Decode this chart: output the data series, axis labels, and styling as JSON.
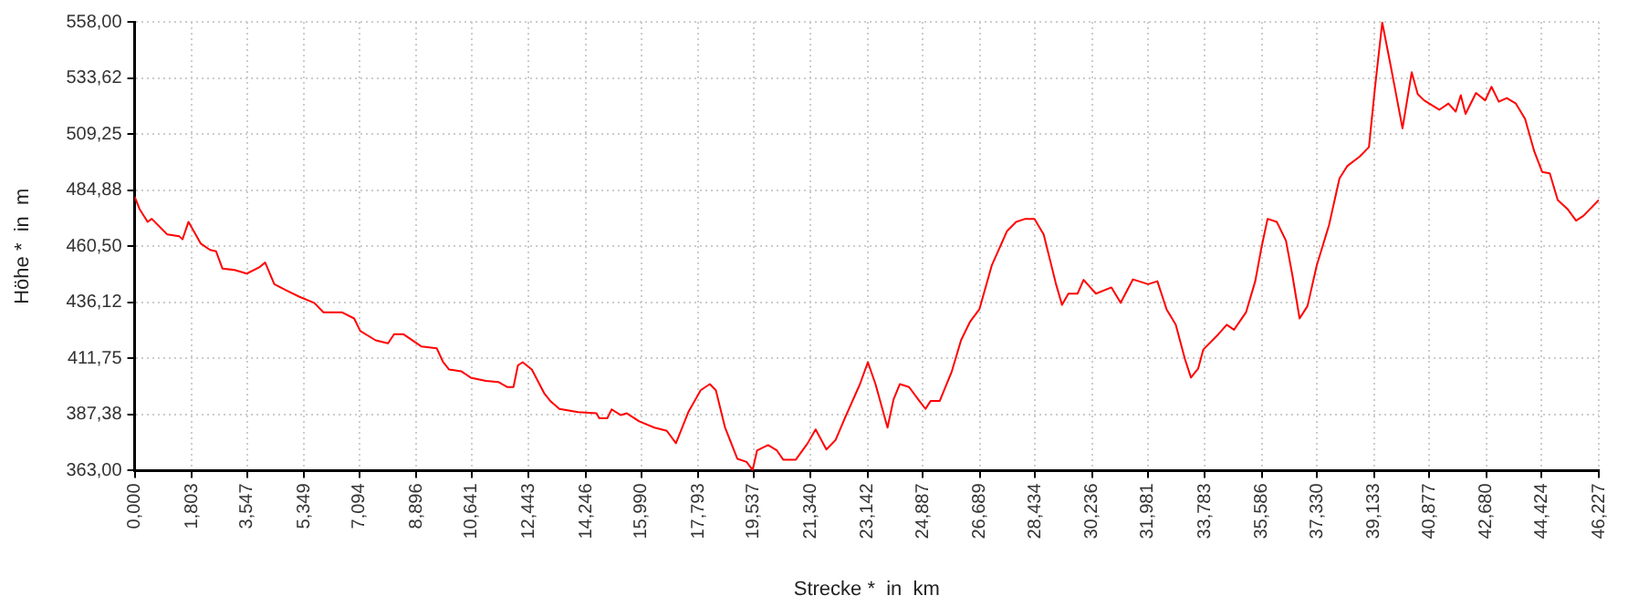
{
  "chart_data": {
    "type": "line",
    "xlabel": "Strecke *  in  km",
    "ylabel": "Höhe *  in  m",
    "grid": true,
    "legend": false,
    "marker": "none",
    "line_style": "solid",
    "xlim": [
      0,
      46.227
    ],
    "ylim": [
      363,
      558
    ],
    "xticks": [
      {
        "value": 0,
        "label": "0,000"
      },
      {
        "value": 1.803,
        "label": "1,803"
      },
      {
        "value": 3.547,
        "label": "3,547"
      },
      {
        "value": 5.349,
        "label": "5,349"
      },
      {
        "value": 7.094,
        "label": "7,094"
      },
      {
        "value": 8.896,
        "label": "8,896"
      },
      {
        "value": 10.641,
        "label": "10,641"
      },
      {
        "value": 12.443,
        "label": "12,443"
      },
      {
        "value": 14.246,
        "label": "14,246"
      },
      {
        "value": 15.99,
        "label": "15,990"
      },
      {
        "value": 17.793,
        "label": "17,793"
      },
      {
        "value": 19.537,
        "label": "19,537"
      },
      {
        "value": 21.34,
        "label": "21,340"
      },
      {
        "value": 23.142,
        "label": "23,142"
      },
      {
        "value": 24.887,
        "label": "24,887"
      },
      {
        "value": 26.689,
        "label": "26,689"
      },
      {
        "value": 28.434,
        "label": "28,434"
      },
      {
        "value": 30.236,
        "label": "30,236"
      },
      {
        "value": 31.981,
        "label": "31,981"
      },
      {
        "value": 33.783,
        "label": "33,783"
      },
      {
        "value": 35.586,
        "label": "35,586"
      },
      {
        "value": 37.33,
        "label": "37,330"
      },
      {
        "value": 39.133,
        "label": "39,133"
      },
      {
        "value": 40.877,
        "label": "40,877"
      },
      {
        "value": 42.68,
        "label": "42,680"
      },
      {
        "value": 44.424,
        "label": "44,424"
      },
      {
        "value": 46.227,
        "label": "46,227"
      }
    ],
    "yticks": [
      {
        "value": 363,
        "label": "363,00"
      },
      {
        "value": 387.38,
        "label": "387,38"
      },
      {
        "value": 411.75,
        "label": "411,75"
      },
      {
        "value": 436.12,
        "label": "436,12"
      },
      {
        "value": 460.5,
        "label": "460,50"
      },
      {
        "value": 484.88,
        "label": "484,88"
      },
      {
        "value": 509.25,
        "label": "509,25"
      },
      {
        "value": 533.62,
        "label": "533,62"
      },
      {
        "value": 558,
        "label": "558,00"
      }
    ],
    "series": [
      {
        "color": "#ff0000",
        "x": [
          0,
          0.16,
          0.41,
          0.54,
          1.03,
          1.41,
          1.51,
          1.7,
          2.09,
          2.38,
          2.57,
          2.77,
          3.15,
          3.54,
          3.93,
          4.12,
          4.41,
          4.8,
          5.19,
          5.67,
          5.96,
          6.54,
          6.93,
          7.12,
          7.61,
          8.0,
          8.19,
          8.48,
          9.06,
          9.54,
          9.74,
          9.93,
          10.32,
          10.61,
          11.09,
          11.48,
          11.77,
          11.96,
          12.1,
          12.25,
          12.54,
          12.93,
          13.12,
          13.41,
          14.0,
          14.58,
          14.67,
          14.92,
          15.06,
          15.35,
          15.54,
          15.93,
          16.41,
          16.8,
          17.09,
          17.48,
          17.87,
          18.16,
          18.35,
          18.64,
          19.03,
          19.32,
          19.51,
          19.65,
          20.0,
          20.28,
          20.48,
          20.87,
          21.25,
          21.5,
          21.84,
          22.13,
          22.42,
          22.9,
          23.15,
          23.39,
          23.77,
          23.96,
          24.16,
          24.45,
          24.74,
          24.97,
          25.13,
          25.42,
          25.8,
          26.09,
          26.38,
          26.67,
          27.06,
          27.54,
          27.83,
          28.12,
          28.41,
          28.7,
          29.09,
          29.28,
          29.48,
          29.77,
          29.96,
          30.35,
          30.84,
          31.13,
          31.52,
          32.0,
          32.29,
          32.58,
          32.87,
          33.16,
          33.35,
          33.58,
          33.74,
          34.22,
          34.48,
          34.71,
          35.09,
          35.38,
          35.58,
          35.77,
          36.06,
          36.35,
          36.55,
          36.78,
          37.03,
          37.32,
          37.71,
          38.04,
          38.29,
          38.68,
          38.97,
          39.16,
          39.39,
          39.64,
          40.03,
          40.32,
          40.51,
          40.71,
          41.19,
          41.48,
          41.71,
          41.87,
          42.02,
          42.35,
          42.64,
          42.84,
          43.07,
          43.32,
          43.61,
          43.9,
          44.19,
          44.44,
          44.68,
          44.93,
          45.25,
          45.51,
          45.74,
          46.227
        ],
        "values": [
          482,
          476.5,
          471.1,
          472.4,
          465.6,
          464.8,
          463.5,
          471.1,
          461.6,
          458.9,
          458.3,
          450.8,
          450.2,
          448.6,
          451.3,
          453.4,
          444,
          441.2,
          438.6,
          435.9,
          431.8,
          431.8,
          429.1,
          423.7,
          419.6,
          418.3,
          422.3,
          422.3,
          416.9,
          416.1,
          410.1,
          406.9,
          406.1,
          403.4,
          402,
          401.5,
          399.3,
          399.3,
          408.7,
          410.1,
          406.9,
          396.6,
          393.3,
          389.8,
          388.4,
          387.9,
          385.7,
          385.7,
          389.6,
          387.1,
          387.9,
          384.4,
          381.7,
          380.3,
          374.9,
          388.4,
          397.9,
          400.6,
          397.9,
          381.7,
          368.1,
          366.8,
          363.2,
          371.7,
          374.1,
          371.7,
          367.7,
          367.7,
          374.9,
          380.9,
          372.2,
          376.3,
          385.7,
          400.6,
          410.1,
          400.6,
          381.7,
          393.9,
          400.6,
          399.3,
          393.9,
          389.8,
          393.3,
          393.3,
          406.1,
          419.6,
          427.8,
          433.1,
          452.1,
          467,
          471.1,
          472.4,
          472.4,
          465.6,
          444,
          435,
          439.9,
          439.9,
          445.9,
          439.9,
          442.6,
          435.9,
          446.1,
          444,
          445.3,
          433.1,
          426.4,
          411.5,
          403.4,
          407.4,
          415.6,
          422.3,
          426.4,
          424.2,
          431.8,
          445.3,
          460.2,
          472.4,
          471.1,
          462.9,
          448.1,
          429.1,
          434.5,
          452.1,
          469.7,
          490,
          495.4,
          499.5,
          503.6,
          529.3,
          557.7,
          540.1,
          511.7,
          536.1,
          526.6,
          523.9,
          519.8,
          522.5,
          519,
          526.1,
          518,
          527.1,
          523.9,
          529.8,
          523.3,
          524.9,
          522.5,
          515.8,
          501.7,
          492.8,
          492.2,
          480.6,
          476.5,
          471.6,
          473.7,
          480.6
        ]
      }
    ]
  }
}
